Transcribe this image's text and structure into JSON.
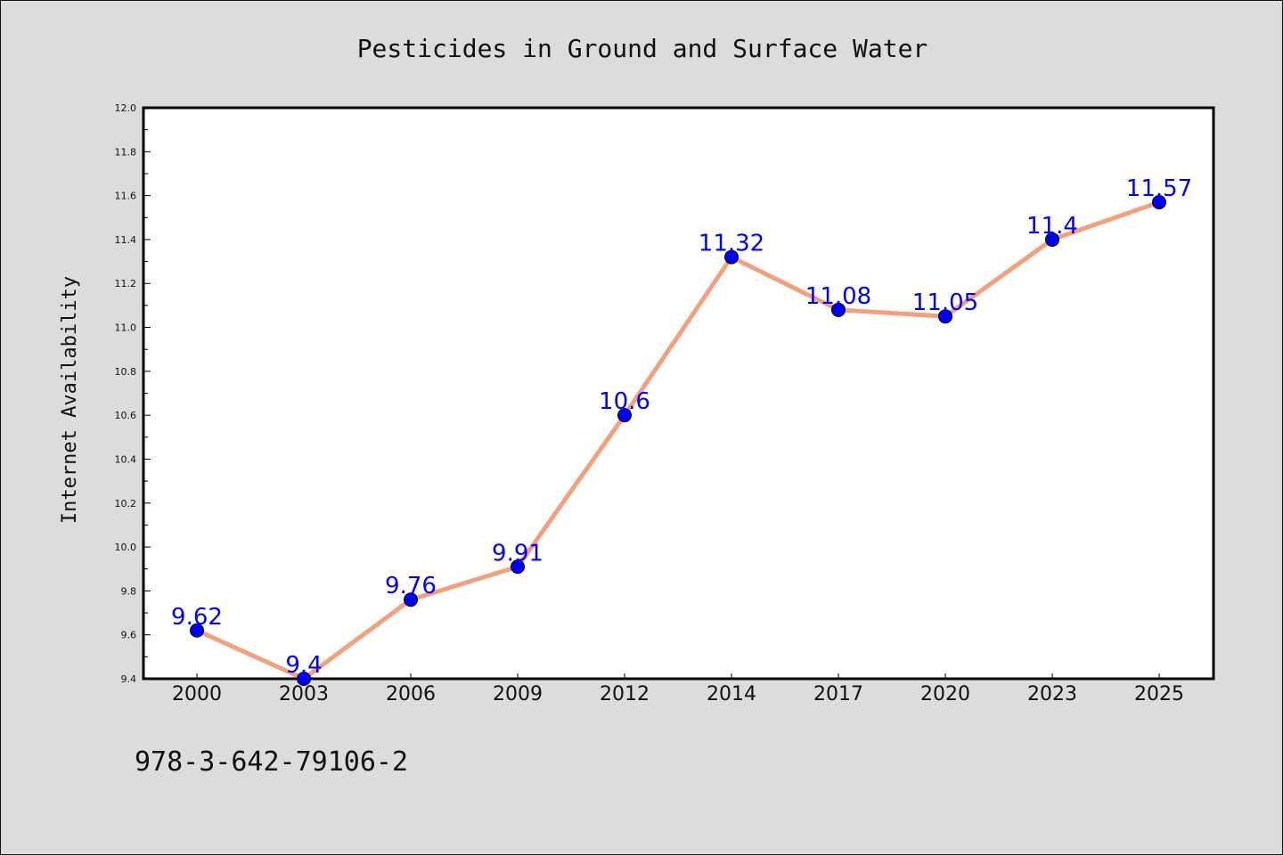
{
  "chart_data": {
    "type": "line",
    "title": "Pesticides in Ground and Surface Water",
    "xlabel": "",
    "ylabel": "Internet Availability",
    "categories": [
      "2000",
      "2003",
      "2006",
      "2009",
      "2012",
      "2014",
      "2017",
      "2020",
      "2023",
      "2025"
    ],
    "values": [
      9.62,
      9.4,
      9.76,
      9.91,
      10.6,
      11.32,
      11.08,
      11.05,
      11.4,
      11.57
    ],
    "data_labels": [
      "9.62",
      "9.4",
      "9.76",
      "9.91",
      "10.6",
      "11.32",
      "11.08",
      "11.05",
      "11.4",
      "11.57"
    ],
    "ylim": [
      9.4,
      12.0
    ],
    "yticks": [
      "9.4",
      "9.6",
      "9.8",
      "10.0",
      "10.2",
      "10.4",
      "10.6",
      "10.8",
      "11.0",
      "11.2",
      "11.4",
      "11.6",
      "11.8",
      "12.0"
    ],
    "grid": false,
    "legend": "none",
    "line_color": "#f4a07e",
    "marker_color": "#0000ff",
    "label_color": "#0000ff"
  },
  "footer": {
    "code": "978-3-642-79106-2"
  }
}
